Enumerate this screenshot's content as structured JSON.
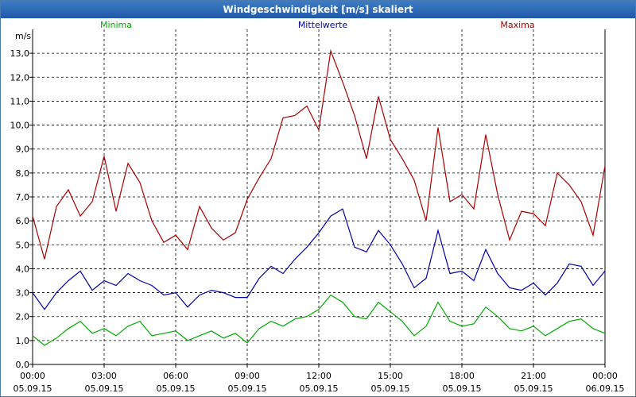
{
  "window": {
    "title": "Windgeschwindigkeit [m/s] skaliert"
  },
  "chart_data": {
    "type": "line",
    "ylabel": "m/s",
    "ylim": [
      0,
      14
    ],
    "yticks": [
      "0,0",
      "1,0",
      "2,0",
      "3,0",
      "4,0",
      "5,0",
      "6,0",
      "7,0",
      "8,0",
      "9,0",
      "10,0",
      "11,0",
      "12,0",
      "13,0"
    ],
    "xticks": [
      {
        "time": "00:00",
        "date": "05.09.15"
      },
      {
        "time": "03:00",
        "date": "05.09.15"
      },
      {
        "time": "06:00",
        "date": "05.09.15"
      },
      {
        "time": "09:00",
        "date": "05.09.15"
      },
      {
        "time": "12:00",
        "date": "05.09.15"
      },
      {
        "time": "15:00",
        "date": "05.09.15"
      },
      {
        "time": "18:00",
        "date": "05.09.15"
      },
      {
        "time": "21:00",
        "date": "05.09.15"
      },
      {
        "time": "00:00",
        "date": "06.09.15"
      }
    ],
    "grid": true,
    "x": [
      0,
      0.5,
      1,
      1.5,
      2,
      2.5,
      3,
      3.5,
      4,
      4.5,
      5,
      5.5,
      6,
      6.5,
      7,
      7.5,
      8,
      8.5,
      9,
      9.5,
      10,
      10.5,
      11,
      11.5,
      12,
      12.5,
      13,
      13.5,
      14,
      14.5,
      15,
      15.5,
      16,
      16.5,
      17,
      17.5,
      18,
      18.5,
      19,
      19.5,
      20,
      20.5,
      21,
      21.5,
      22,
      22.5,
      23,
      23.5,
      24
    ],
    "series": [
      {
        "name": "Minima",
        "color": "#00aa00",
        "values": [
          1.2,
          0.8,
          1.1,
          1.5,
          1.8,
          1.3,
          1.5,
          1.2,
          1.6,
          1.8,
          1.2,
          1.3,
          1.4,
          1.0,
          1.2,
          1.4,
          1.1,
          1.3,
          0.9,
          1.5,
          1.8,
          1.6,
          1.9,
          2.0,
          2.3,
          2.9,
          2.6,
          2.0,
          1.9,
          2.6,
          2.2,
          1.8,
          1.2,
          1.6,
          2.6,
          1.8,
          1.6,
          1.7,
          2.4,
          2.0,
          1.5,
          1.4,
          1.6,
          1.2,
          1.5,
          1.8,
          1.9,
          1.5,
          1.3
        ]
      },
      {
        "name": "Mittelwerte",
        "color": "#0000aa",
        "values": [
          3.0,
          2.3,
          3.0,
          3.5,
          3.9,
          3.1,
          3.5,
          3.3,
          3.8,
          3.5,
          3.3,
          2.9,
          3.0,
          2.4,
          2.9,
          3.1,
          3.0,
          2.8,
          2.8,
          3.6,
          4.1,
          3.8,
          4.4,
          4.9,
          5.5,
          6.2,
          6.5,
          4.9,
          4.7,
          5.6,
          5.0,
          4.2,
          3.2,
          3.6,
          5.6,
          3.8,
          3.9,
          3.5,
          4.8,
          3.8,
          3.2,
          3.1,
          3.4,
          2.9,
          3.4,
          4.2,
          4.1,
          3.3,
          3.9
        ]
      },
      {
        "name": "Maxima",
        "color": "#aa0000",
        "values": [
          6.2,
          4.4,
          6.6,
          7.3,
          6.2,
          6.8,
          8.7,
          6.4,
          8.4,
          7.6,
          6.0,
          5.1,
          5.4,
          4.8,
          6.6,
          5.7,
          5.2,
          5.5,
          6.9,
          7.8,
          8.6,
          10.3,
          10.4,
          10.8,
          9.8,
          13.1,
          11.8,
          10.4,
          8.6,
          11.2,
          9.4,
          8.6,
          7.7,
          6.0,
          9.9,
          6.8,
          7.1,
          6.5,
          9.6,
          7.1,
          5.2,
          6.4,
          6.3,
          5.8,
          8.0,
          7.5,
          6.8,
          5.4,
          8.3
        ]
      }
    ]
  }
}
